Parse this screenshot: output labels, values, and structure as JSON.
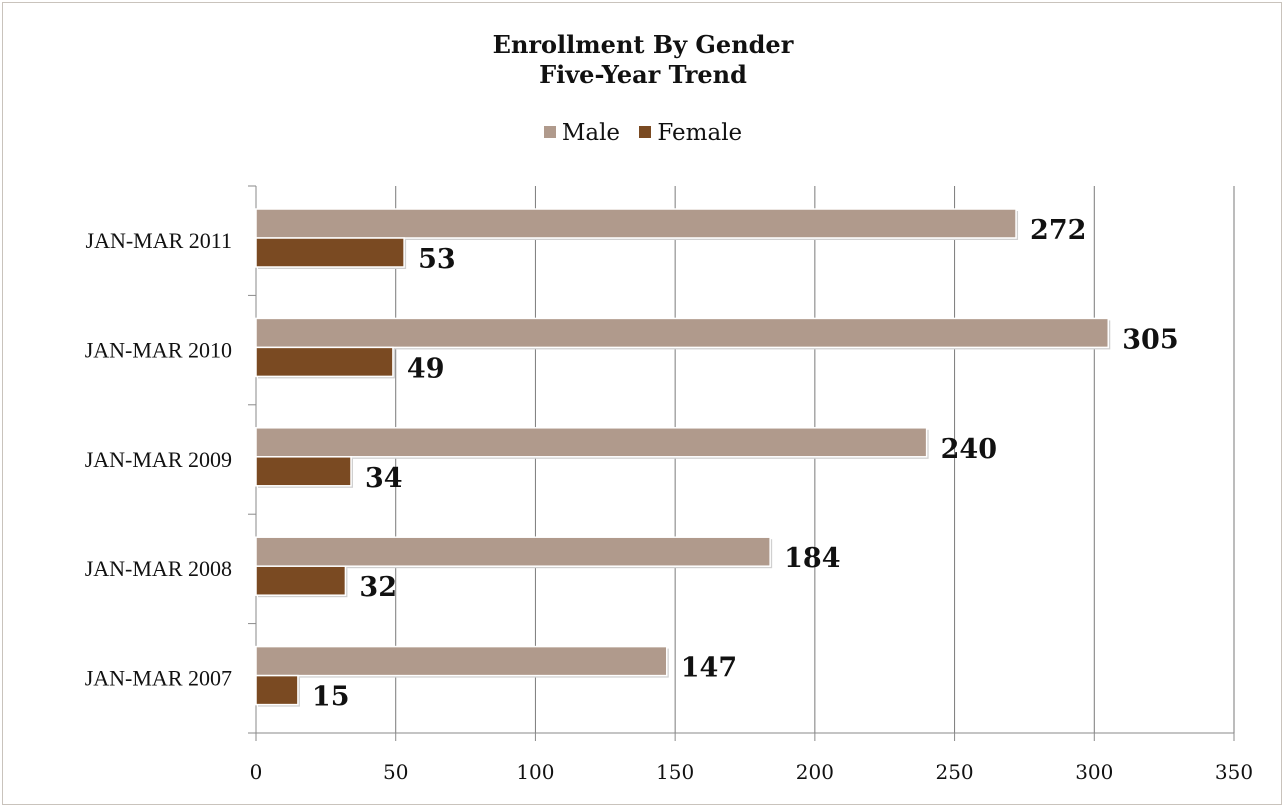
{
  "chart_data": {
    "type": "bar",
    "orientation": "horizontal",
    "title": "Enrollment By Gender",
    "subtitle": "Five-Year Trend",
    "categories": [
      "JAN-MAR 2011",
      "JAN-MAR 2010",
      "JAN-MAR 2009",
      "JAN-MAR 2008",
      "JAN-MAR 2007"
    ],
    "series": [
      {
        "name": "Male",
        "values": [
          272,
          305,
          240,
          184,
          147
        ],
        "color": "#b09a8c"
      },
      {
        "name": "Female",
        "values": [
          53,
          49,
          34,
          32,
          15
        ],
        "color": "#7a4a22"
      }
    ],
    "xlim": [
      0,
      350
    ],
    "xticks": [
      0,
      50,
      100,
      150,
      200,
      250,
      300,
      350
    ],
    "xlabel": "",
    "ylabel": "",
    "grid": true,
    "legend_position": "top"
  }
}
